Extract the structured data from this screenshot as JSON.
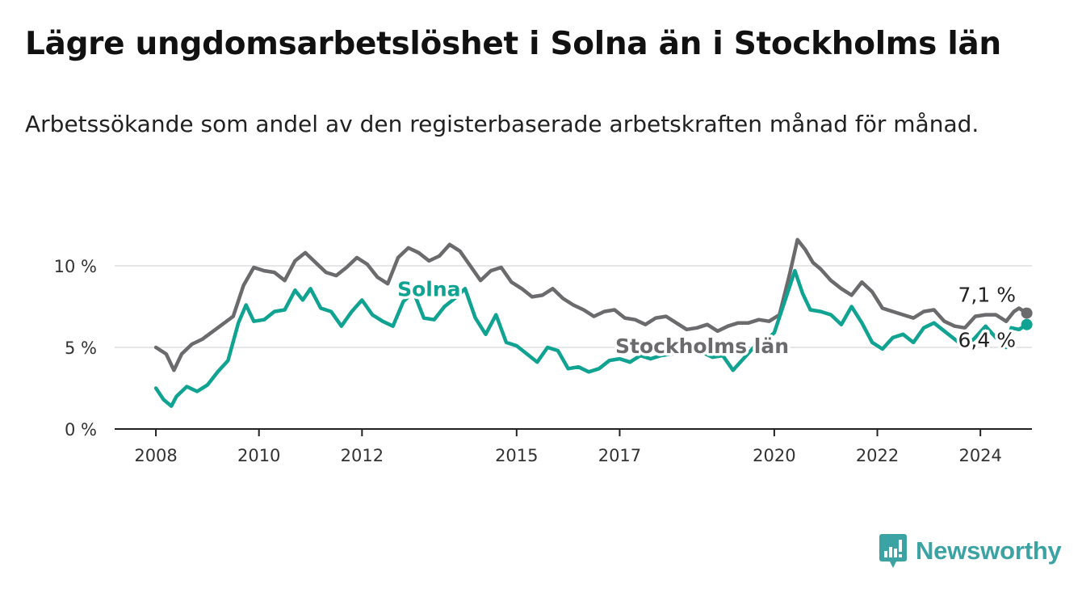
{
  "title": "Lägre ungdomsarbetslöshet i Solna än i Stockholms län",
  "subtitle": "Arbetssökande som andel av den registerbaserade arbetskraften månad för månad.",
  "brand": {
    "name": "Newsworthy",
    "icon": "newsworthy-logo-icon"
  },
  "colors": {
    "solna": "#10a391",
    "stockholm": "#6b6b6d",
    "grid": "#dddddd",
    "axis": "#222222",
    "brand": "#3ba3a3"
  },
  "chart_data": {
    "type": "line",
    "x_unit": "year (decimal, monthly samples)",
    "x_ticks": [
      2008,
      2010,
      2012,
      2015,
      2017,
      2020,
      2022,
      2024
    ],
    "y_ticks": [
      0,
      5,
      10
    ],
    "y_tick_labels": [
      "0 %",
      "5 %",
      "10 %"
    ],
    "xlim": [
      2007.2,
      2025.0
    ],
    "ylim": [
      0,
      12.5
    ],
    "grid": "horizontal",
    "legend": "inline labels",
    "series": [
      {
        "name": "Stockholms län",
        "label": "Stockholms län",
        "end_label": "7,1 %",
        "color": "#6b6b6d",
        "x": [
          2008.0,
          2008.2,
          2008.35,
          2008.5,
          2008.7,
          2008.9,
          2009.2,
          2009.5,
          2009.7,
          2009.9,
          2010.1,
          2010.3,
          2010.5,
          2010.7,
          2010.9,
          2011.1,
          2011.3,
          2011.5,
          2011.7,
          2011.9,
          2012.1,
          2012.3,
          2012.5,
          2012.7,
          2012.9,
          2013.1,
          2013.3,
          2013.5,
          2013.7,
          2013.9,
          2014.1,
          2014.3,
          2014.5,
          2014.7,
          2014.9,
          2015.1,
          2015.3,
          2015.5,
          2015.7,
          2015.9,
          2016.1,
          2016.3,
          2016.5,
          2016.7,
          2016.9,
          2017.1,
          2017.3,
          2017.5,
          2017.7,
          2017.9,
          2018.1,
          2018.3,
          2018.5,
          2018.7,
          2018.9,
          2019.1,
          2019.3,
          2019.5,
          2019.7,
          2019.9,
          2020.1,
          2020.3,
          2020.45,
          2020.6,
          2020.75,
          2020.9,
          2021.1,
          2021.3,
          2021.5,
          2021.7,
          2021.9,
          2022.1,
          2022.3,
          2022.5,
          2022.7,
          2022.9,
          2023.1,
          2023.3,
          2023.5,
          2023.7,
          2023.9,
          2024.1,
          2024.3,
          2024.5,
          2024.65,
          2024.75,
          2024.9
        ],
        "y": [
          5.0,
          4.6,
          3.6,
          4.6,
          5.2,
          5.5,
          6.2,
          6.9,
          8.8,
          9.9,
          9.7,
          9.6,
          9.1,
          10.3,
          10.8,
          10.2,
          9.6,
          9.4,
          9.9,
          10.5,
          10.1,
          9.3,
          8.9,
          10.5,
          11.1,
          10.8,
          10.3,
          10.6,
          11.3,
          10.9,
          10.0,
          9.1,
          9.7,
          9.9,
          9.0,
          8.6,
          8.1,
          8.2,
          8.6,
          8.0,
          7.6,
          7.3,
          6.9,
          7.2,
          7.3,
          6.8,
          6.7,
          6.4,
          6.8,
          6.9,
          6.5,
          6.1,
          6.2,
          6.4,
          6.0,
          6.3,
          6.5,
          6.5,
          6.7,
          6.6,
          7.0,
          9.5,
          11.6,
          11.0,
          10.2,
          9.8,
          9.1,
          8.6,
          8.2,
          9.0,
          8.4,
          7.4,
          7.2,
          7.0,
          6.8,
          7.2,
          7.3,
          6.6,
          6.3,
          6.2,
          6.9,
          7.0,
          7.0,
          6.6,
          7.2,
          7.4,
          7.1
        ]
      },
      {
        "name": "Solna",
        "label": "Solna",
        "end_label": "6,4 %",
        "color": "#10a391",
        "x": [
          2008.0,
          2008.15,
          2008.3,
          2008.4,
          2008.6,
          2008.8,
          2009.0,
          2009.2,
          2009.4,
          2009.6,
          2009.75,
          2009.9,
          2010.1,
          2010.3,
          2010.5,
          2010.7,
          2010.85,
          2011.0,
          2011.2,
          2011.4,
          2011.6,
          2011.8,
          2012.0,
          2012.2,
          2012.4,
          2012.6,
          2012.8,
          2013.0,
          2013.2,
          2013.4,
          2013.6,
          2013.8,
          2014.0,
          2014.2,
          2014.4,
          2014.6,
          2014.8,
          2015.0,
          2015.2,
          2015.4,
          2015.6,
          2015.8,
          2016.0,
          2016.2,
          2016.4,
          2016.6,
          2016.8,
          2017.0,
          2017.2,
          2017.4,
          2017.6,
          2017.8,
          2018.0,
          2018.2,
          2018.4,
          2018.6,
          2018.8,
          2019.0,
          2019.2,
          2019.4,
          2019.6,
          2019.8,
          2020.0,
          2020.2,
          2020.4,
          2020.55,
          2020.7,
          2020.9,
          2021.1,
          2021.3,
          2021.5,
          2021.7,
          2021.9,
          2022.1,
          2022.3,
          2022.5,
          2022.7,
          2022.9,
          2023.1,
          2023.3,
          2023.5,
          2023.7,
          2023.9,
          2024.1,
          2024.3,
          2024.45,
          2024.5,
          2024.6,
          2024.75,
          2024.9
        ],
        "y": [
          2.5,
          1.8,
          1.4,
          2.0,
          2.6,
          2.3,
          2.7,
          3.5,
          4.2,
          6.5,
          7.6,
          6.6,
          6.7,
          7.2,
          7.3,
          8.5,
          7.9,
          8.6,
          7.4,
          7.2,
          6.3,
          7.2,
          7.9,
          7.0,
          6.6,
          6.3,
          7.8,
          8.4,
          6.8,
          6.7,
          7.5,
          8.0,
          8.6,
          6.8,
          5.8,
          7.0,
          5.3,
          5.1,
          4.6,
          4.1,
          5.0,
          4.8,
          3.7,
          3.8,
          3.5,
          3.7,
          4.2,
          4.3,
          4.1,
          4.5,
          4.3,
          4.5,
          4.6,
          4.8,
          4.9,
          4.7,
          4.4,
          4.5,
          3.6,
          4.3,
          5.0,
          5.3,
          5.9,
          7.8,
          9.7,
          8.3,
          7.3,
          7.2,
          7.0,
          6.4,
          7.5,
          6.5,
          5.3,
          4.9,
          5.6,
          5.8,
          5.3,
          6.2,
          6.5,
          6.0,
          5.5,
          5.0,
          5.6,
          6.3,
          5.6,
          5.4,
          5.0,
          6.2,
          6.1,
          6.4
        ]
      }
    ]
  }
}
